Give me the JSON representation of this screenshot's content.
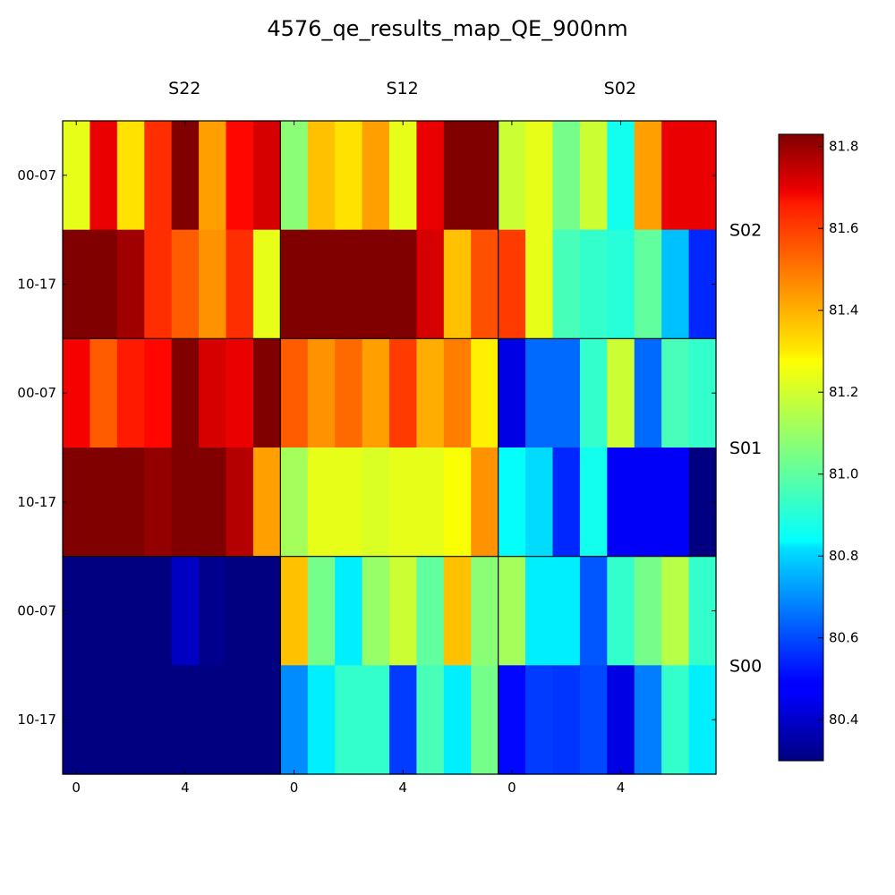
{
  "chart_data": {
    "type": "heatmap",
    "title": "4576_qe_results_map_QE_900nm",
    "column_blocks": [
      "S22",
      "S12",
      "S02"
    ],
    "row_blocks": [
      "S02",
      "S01",
      "S00"
    ],
    "row_tick_labels": [
      "00-07",
      "10-17",
      "00-07",
      "10-17",
      "00-07",
      "10-17"
    ],
    "x_tick_labels": [
      "0",
      "4"
    ],
    "colorbar": {
      "min": 80.3,
      "max": 81.83,
      "ticks": [
        "80.4",
        "80.6",
        "80.8",
        "81.0",
        "81.2",
        "81.4",
        "81.6",
        "81.8"
      ],
      "colormap": "jet"
    },
    "values": [
      [
        81.22,
        81.67,
        81.3,
        81.57,
        81.83,
        81.4,
        81.63,
        81.7,
        81.08,
        81.35,
        81.3,
        81.4,
        81.22,
        81.67,
        81.83,
        81.83,
        81.18,
        81.22,
        81.05,
        81.18,
        80.9,
        81.4,
        81.67,
        81.67
      ],
      [
        81.83,
        81.83,
        81.78,
        81.57,
        81.5,
        81.42,
        81.57,
        81.22,
        81.83,
        81.83,
        81.83,
        81.83,
        81.83,
        81.7,
        81.35,
        81.52,
        81.55,
        81.22,
        80.98,
        80.95,
        80.93,
        81.02,
        80.78,
        80.55
      ],
      [
        81.65,
        81.5,
        81.6,
        81.63,
        81.83,
        81.7,
        81.67,
        81.83,
        81.5,
        81.42,
        81.48,
        81.4,
        81.55,
        81.38,
        81.45,
        81.28,
        80.45,
        80.65,
        80.65,
        80.95,
        81.18,
        80.65,
        80.98,
        80.95
      ],
      [
        81.83,
        81.83,
        81.83,
        81.8,
        81.83,
        81.83,
        81.75,
        81.4,
        81.12,
        81.22,
        81.22,
        81.2,
        81.22,
        81.22,
        81.25,
        81.42,
        80.88,
        80.82,
        80.55,
        80.9,
        80.48,
        80.48,
        80.48,
        80.3
      ],
      [
        80.3,
        80.3,
        80.3,
        80.3,
        80.4,
        80.32,
        80.3,
        80.3,
        81.35,
        81.05,
        80.85,
        81.1,
        81.18,
        81.02,
        81.35,
        81.08,
        81.12,
        80.85,
        80.85,
        80.62,
        80.95,
        81.05,
        81.15,
        80.95
      ],
      [
        80.3,
        80.3,
        80.3,
        80.3,
        80.3,
        80.3,
        80.3,
        80.3,
        80.7,
        80.85,
        80.95,
        80.95,
        80.58,
        80.98,
        80.85,
        81.05,
        80.5,
        80.58,
        80.57,
        80.6,
        80.45,
        80.68,
        80.95,
        80.85
      ]
    ]
  }
}
